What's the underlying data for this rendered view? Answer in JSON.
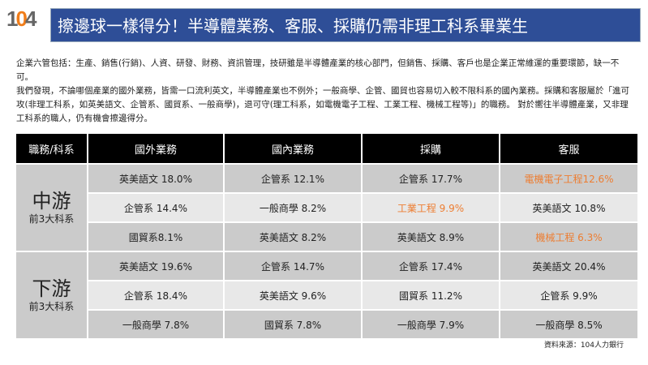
{
  "logo": {
    "text": "104"
  },
  "title": "擦邊球一樣得分！半導體業務、客服、採購仍需非理工科系畢業生",
  "intro": [
    "企業六管包括：生產、銷售(行銷)、人資、研發、財務、資訊管理，技研雖是半導體產業的核心部門，但銷售、採購、客戶也是企業正常維運的重要環節，缺一不可。",
    "我們發現，不論哪個產業的國外業務，皆需一口流利英文，半導體產業也不例外；一般商學、企管、國貿也容易切入較不限科系的國內業務。採購和客服屬於「進可攻(非理工科系，如英美語文、企管系、國貿系、一般商學)，退可守(理工科系，如電機電子工程、工業工程、機械工程等)」的職務。 對於嚮往半導體產業，又非理工科系的職人，仍有機會擦邊得分。"
  ],
  "table": {
    "headers": [
      "職務/科系",
      "國外業務",
      "國內業務",
      "採購",
      "客服"
    ],
    "groups": [
      {
        "name": "中游",
        "sub": "前3大科系",
        "rows": [
          [
            "英美語文 18.0%",
            "企管系 12.1%",
            "企管系 17.7%",
            "電機電子工程12.6%"
          ],
          [
            "企管系 14.4%",
            "一般商學 8.2%",
            "工業工程 9.9%",
            "英美語文 10.8%"
          ],
          [
            "國貿系8.1%",
            "英美語文 8.2%",
            "英美語文 8.9%",
            "機械工程 6.3%"
          ]
        ]
      },
      {
        "name": "下游",
        "sub": "前3大科系",
        "rows": [
          [
            "英美語文 19.6%",
            "企管系 14.7%",
            "企管系 17.4%",
            "英美語文 20.4%"
          ],
          [
            "企管系 18.4%",
            "英美語文 9.6%",
            "國貿系 11.2%",
            "企管系 9.9%"
          ],
          [
            "一般商學 7.8%",
            "國貿系 7.8%",
            "一般商學 7.9%",
            "一般商學 8.5%"
          ]
        ]
      }
    ],
    "highlighted": [
      "電機電子工程12.6%",
      "工業工程 9.9%",
      "機械工程 6.3%"
    ],
    "highlight_color": "#ED7D31"
  },
  "source": "資料來源：104人力銀行"
}
